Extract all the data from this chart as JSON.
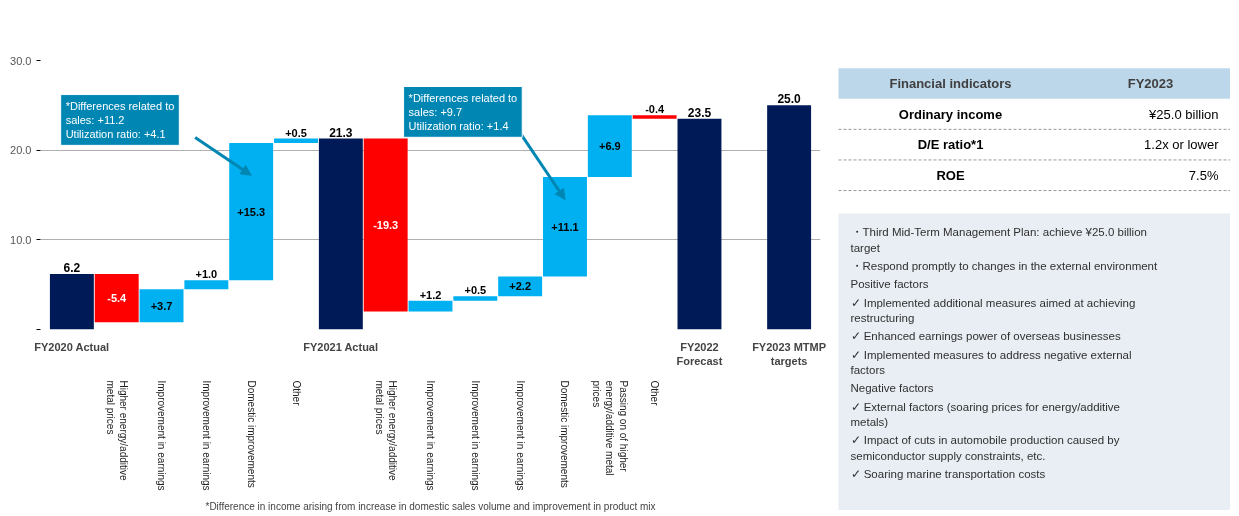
{
  "chart_data": [
    {
      "type": "bar",
      "categories": [
        "FY2020 Actual",
        "Higher energy/additive metal prices",
        "Improvement in earnings",
        "Improvement in earnings",
        "Domestic improvements",
        "Other",
        "FY2021 Actual",
        "Higher energy/additive metal prices",
        "Improvement in earnings",
        "Improvement in earnings",
        "Improvement in earnings",
        "Domestic improvements",
        "Passing on of higher energy/additive metal prices",
        "Other",
        "FY2022 Forecast",
        null,
        "FY2023 MTMP targets"
      ],
      "values": [
        6.2,
        -5.4,
        3.7,
        1.0,
        15.3,
        0.5,
        21.3,
        -19.3,
        1.2,
        0.5,
        2.2,
        11.1,
        6.9,
        -0.4,
        23.5,
        null,
        25.0
      ],
      "base": [
        null,
        6.2,
        0.8,
        4.5,
        5.5,
        20.8,
        null,
        21.3,
        2.0,
        3.2,
        3.7,
        5.9,
        17.0,
        23.9,
        null,
        null,
        null
      ],
      "colors": [
        "#001a57",
        "#ff0000",
        "#00b0f0",
        "#00b0f0",
        "#00b0f0",
        "#00b0f0",
        "#001a57",
        "#ff0000",
        "#00b0f0",
        "#00b0f0",
        "#00b0f0",
        "#00b0f0",
        "#00b0f0",
        "#ff0000",
        "#001a57",
        null,
        "#001a57"
      ],
      "value_labels": [
        "6.2",
        "-5.4",
        "+3.7",
        "+1.0",
        "+15.3",
        "+0.5",
        "21.3",
        "-19.3",
        "+1.2",
        "+0.5",
        "+2.2",
        "+11.1",
        "+6.9",
        "-0.4",
        "23.5",
        null,
        "25.0"
      ],
      "ylim": [
        0,
        30
      ],
      "yticks": [
        {
          "value": 0,
          "label": null
        },
        {
          "value": 10,
          "label": "10.0"
        },
        {
          "value": 20,
          "label": "20.0"
        },
        {
          "value": 30,
          "label": "30.0"
        }
      ],
      "grid": "y",
      "annotations": [
        "*Differences related to sales: +11.2\nUtilization ratio: +4.1",
        "*Differences related to sales: +9.7\nUtilization ratio: +1.4",
        "*Difference in income arising from increase in domestic sales volume and improvement in product mix"
      ]
    },
    {
      "type": "other",
      "title": "Financial indicators",
      "subtitle": "FY2023",
      "categories": [
        "Ordinary income",
        "D/E ratio*1",
        "ROE"
      ],
      "value_labels": [
        "¥25.0 billion",
        "1.2x or lower",
        "7.5%"
      ],
      "annotations": [
        "・Third Mid-Term Management Plan: achieve ¥25.0 billion target",
        "・Respond promptly to changes in the external environment",
        "Positive factors",
        "✓ Implemented additional measures aimed at achieving restructuring",
        "✓ Enhanced earnings power of overseas businesses",
        "✓ Implemented measures to address negative external factors",
        "Negative factors",
        "✓ External factors (soaring prices for energy/additive metals)",
        "✓ Impact of cuts in automobile production caused by semiconductor supply constraints, etc.",
        "✓ Soaring marine transportation costs"
      ]
    }
  ]
}
